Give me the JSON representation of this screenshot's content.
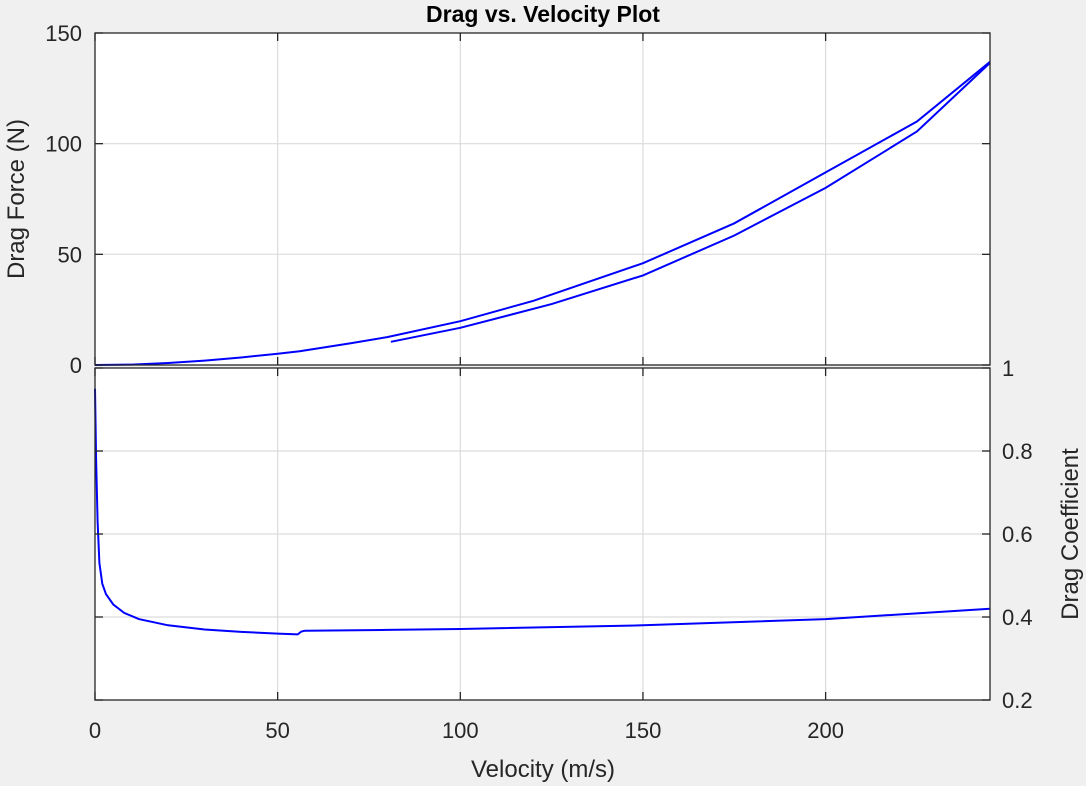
{
  "chart_data": [
    {
      "type": "line",
      "title": "Drag vs. Velocity Plot",
      "xlabel": "",
      "ylabel": "Drag Force (N)",
      "xlim": [
        0,
        245
      ],
      "ylim": [
        0,
        150
      ],
      "xticks": [
        0,
        50,
        100,
        150,
        200
      ],
      "yticks": [
        0,
        50,
        100,
        150
      ],
      "grid": true,
      "series": [
        {
          "x": [
            0,
            10,
            20,
            30,
            40,
            50,
            56,
            70,
            80,
            100,
            120,
            150,
            175,
            200,
            225,
            245
          ],
          "y": [
            0,
            0.2,
            0.9,
            2.0,
            3.4,
            5.1,
            6.2,
            9.8,
            12.6,
            19.8,
            29.0,
            46.0,
            64.0,
            87.0,
            110.0,
            137.0
          ]
        },
        {
          "x": [
            81,
            100,
            125,
            150,
            175,
            200,
            225,
            245
          ],
          "y": [
            10.5,
            16.8,
            27.5,
            40.5,
            58.5,
            80.0,
            105.5,
            136.5
          ]
        }
      ]
    },
    {
      "type": "line",
      "title": "",
      "xlabel": "Velocity (m/s)",
      "ylabel": "Drag Coefficient",
      "xlim": [
        0,
        245
      ],
      "ylim": [
        0.2,
        1
      ],
      "xticks": [
        0,
        50,
        100,
        150,
        200
      ],
      "xticklabels": [
        "0",
        "50",
        "100",
        "150",
        "200"
      ],
      "yticks": [
        0.2,
        0.4,
        0.6,
        0.8,
        1
      ],
      "yticklabels": [
        "0.2",
        "0.4",
        "0.6",
        "0.8",
        "1"
      ],
      "yaxis_location": "right",
      "grid": true,
      "series": [
        {
          "x": [
            0,
            0.3,
            0.7,
            1.2,
            2,
            3,
            5,
            8,
            12,
            20,
            30,
            40,
            50,
            55.5,
            56.5,
            57.5,
            80,
            100,
            150,
            200,
            245
          ],
          "y": [
            0.95,
            0.78,
            0.63,
            0.53,
            0.48,
            0.455,
            0.43,
            0.41,
            0.395,
            0.38,
            0.37,
            0.364,
            0.36,
            0.358,
            0.365,
            0.367,
            0.369,
            0.371,
            0.38,
            0.395,
            0.42
          ]
        }
      ]
    }
  ]
}
